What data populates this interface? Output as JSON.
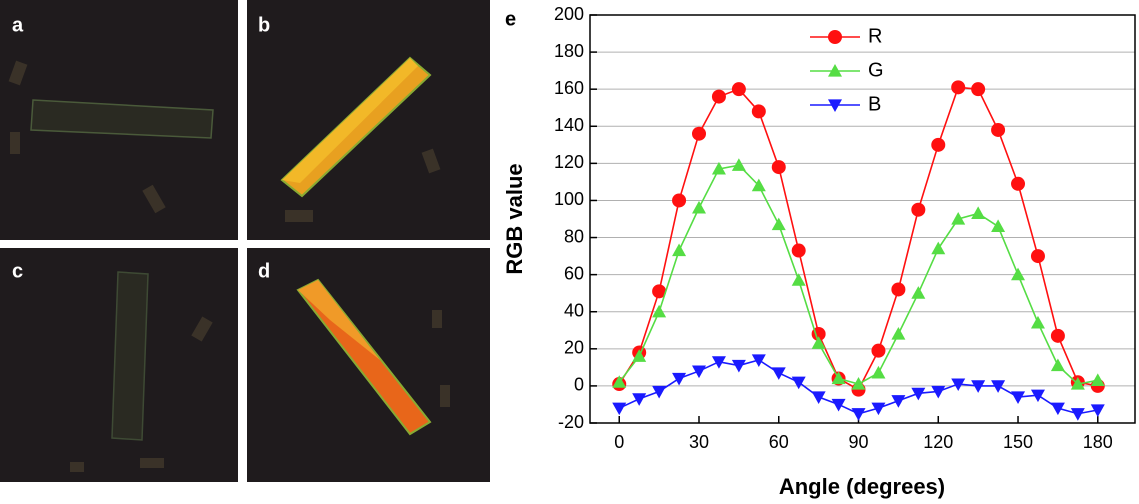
{
  "panels": [
    {
      "label": "a"
    },
    {
      "label": "b"
    },
    {
      "label": "c"
    },
    {
      "label": "d"
    }
  ],
  "chart_data": {
    "type": "line",
    "panel_label": "e",
    "x_label": "Angle (degrees)",
    "y_label": "RGB value",
    "x": [
      0,
      7.5,
      15,
      22.5,
      30,
      37.5,
      45,
      52.5,
      60,
      67.5,
      75,
      82.5,
      90,
      97.5,
      105,
      112.5,
      120,
      127.5,
      135,
      142.5,
      150,
      157.5,
      165,
      172.5,
      180
    ],
    "series": [
      {
        "name": "R",
        "color": "#ff1010",
        "marker": "circle",
        "values": [
          1,
          18,
          51,
          100,
          136,
          156,
          160,
          148,
          118,
          73,
          28,
          4,
          -2,
          19,
          52,
          95,
          130,
          161,
          160,
          138,
          109,
          70,
          27,
          2,
          0
        ]
      },
      {
        "name": "G",
        "color": "#55dd44",
        "marker": "triangle-up",
        "values": [
          2,
          16,
          40,
          73,
          96,
          117,
          119,
          108,
          87,
          57,
          23,
          4,
          1,
          7,
          28,
          50,
          74,
          90,
          93,
          86,
          60,
          34,
          11,
          1,
          3
        ]
      },
      {
        "name": "B",
        "color": "#1a1aff",
        "marker": "triangle-down",
        "values": [
          -12,
          -7,
          -3,
          4,
          8,
          13,
          11,
          14,
          7,
          2,
          -6,
          -10,
          -15,
          -12,
          -8,
          -4,
          -3,
          1,
          0,
          0,
          -6,
          -5,
          -12,
          -15,
          -13
        ]
      }
    ],
    "xlim": [
      -11,
      194
    ],
    "ylim": [
      -20,
      200
    ],
    "xticks": [
      0,
      30,
      60,
      90,
      120,
      150,
      180
    ],
    "yticks": [
      -20,
      0,
      20,
      40,
      60,
      80,
      100,
      120,
      140,
      160,
      180,
      200
    ],
    "grid": true,
    "legend": "upper-left"
  }
}
